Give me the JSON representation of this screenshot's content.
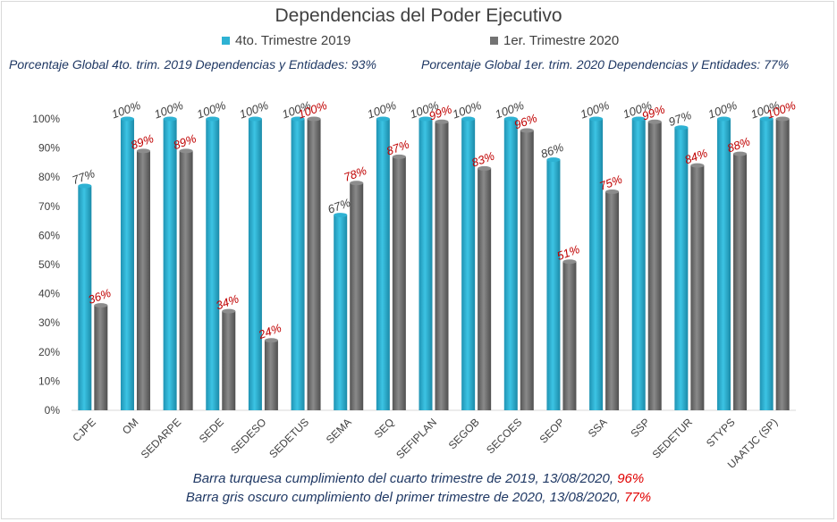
{
  "chart_data": {
    "type": "bar",
    "title": "Dependencias del Poder Ejecutivo",
    "categories": [
      "CJPE",
      "OM",
      "SEDARPE",
      "SEDE",
      "SEDESO",
      "SEDETUS",
      "SEMA",
      "SEQ",
      "SEFIPLAN",
      "SEGOB",
      "SECOES",
      "SEOP",
      "SSA",
      "SSP",
      "SEDETUR",
      "STYPS",
      "UAATJC (SP)"
    ],
    "series": [
      {
        "name": "4to. Trimestre 2019",
        "color": "#2eb2d3",
        "values": [
          77,
          100,
          100,
          100,
          100,
          100,
          67,
          100,
          100,
          100,
          100,
          86,
          100,
          100,
          97,
          100,
          100
        ]
      },
      {
        "name": "1er. Trimestre 2020",
        "color": "#737373",
        "values": [
          36,
          89,
          89,
          34,
          24,
          100,
          78,
          87,
          99,
          83,
          96,
          51,
          75,
          99,
          84,
          88,
          100
        ]
      }
    ],
    "ylim": [
      0,
      100
    ],
    "yticks": [
      "0%",
      "10%",
      "20%",
      "30%",
      "40%",
      "50%",
      "60%",
      "70%",
      "80%",
      "90%",
      "100%"
    ],
    "value_suffix": "%",
    "legend": "top",
    "grid": false
  },
  "global_text": {
    "q4_2019": "Porcentaje Global 4to. trim. 2019 Dependencias y Entidades: 93%",
    "q1_2020": "Porcentaje Global  1er. trim. 2020 Dependencias y Entidades: 77%"
  },
  "footer": {
    "line1_text": "Barra turquesa  cumplimiento  del cuarto trimestre  de 2019,  13/08/2020,",
    "line1_pct": "96%",
    "line2_text": "Barra gris oscuro cumplimiento  del primer trimestre  de 2020,  13/08/2020,",
    "line2_pct": "77%"
  }
}
